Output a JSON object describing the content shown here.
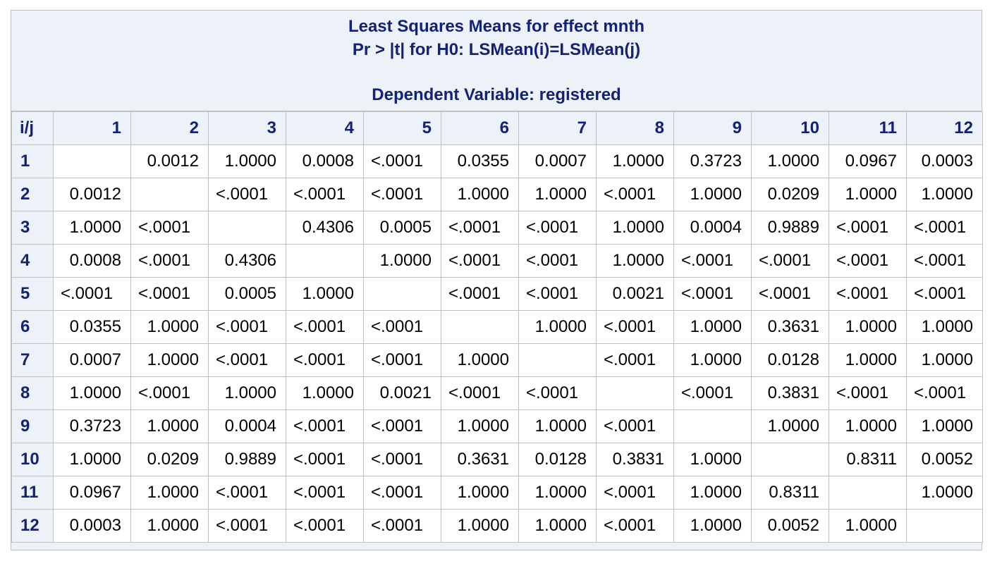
{
  "title": {
    "line1": "Least Squares Means for effect mnth",
    "line2": "Pr > |t| for H0: LSMean(i)=LSMean(j)",
    "line3": "Dependent Variable: registered"
  },
  "table": {
    "corner": "i/j",
    "columns": [
      "1",
      "2",
      "3",
      "4",
      "5",
      "6",
      "7",
      "8",
      "9",
      "10",
      "11",
      "12"
    ],
    "rows": [
      {
        "label": "1",
        "cells": [
          "",
          "0.0012",
          "1.0000",
          "0.0008",
          "<.0001",
          "0.0355",
          "0.0007",
          "1.0000",
          "0.3723",
          "1.0000",
          "0.0967",
          "0.0003"
        ]
      },
      {
        "label": "2",
        "cells": [
          "0.0012",
          "",
          "<.0001",
          "<.0001",
          "<.0001",
          "1.0000",
          "1.0000",
          "<.0001",
          "1.0000",
          "0.0209",
          "1.0000",
          "1.0000"
        ]
      },
      {
        "label": "3",
        "cells": [
          "1.0000",
          "<.0001",
          "",
          "0.4306",
          "0.0005",
          "<.0001",
          "<.0001",
          "1.0000",
          "0.0004",
          "0.9889",
          "<.0001",
          "<.0001"
        ]
      },
      {
        "label": "4",
        "cells": [
          "0.0008",
          "<.0001",
          "0.4306",
          "",
          "1.0000",
          "<.0001",
          "<.0001",
          "1.0000",
          "<.0001",
          "<.0001",
          "<.0001",
          "<.0001"
        ]
      },
      {
        "label": "5",
        "cells": [
          "<.0001",
          "<.0001",
          "0.0005",
          "1.0000",
          "",
          "<.0001",
          "<.0001",
          "0.0021",
          "<.0001",
          "<.0001",
          "<.0001",
          "<.0001"
        ]
      },
      {
        "label": "6",
        "cells": [
          "0.0355",
          "1.0000",
          "<.0001",
          "<.0001",
          "<.0001",
          "",
          "1.0000",
          "<.0001",
          "1.0000",
          "0.3631",
          "1.0000",
          "1.0000"
        ]
      },
      {
        "label": "7",
        "cells": [
          "0.0007",
          "1.0000",
          "<.0001",
          "<.0001",
          "<.0001",
          "1.0000",
          "",
          "<.0001",
          "1.0000",
          "0.0128",
          "1.0000",
          "1.0000"
        ]
      },
      {
        "label": "8",
        "cells": [
          "1.0000",
          "<.0001",
          "1.0000",
          "1.0000",
          "0.0021",
          "<.0001",
          "<.0001",
          "",
          "<.0001",
          "0.3831",
          "<.0001",
          "<.0001"
        ]
      },
      {
        "label": "9",
        "cells": [
          "0.3723",
          "1.0000",
          "0.0004",
          "<.0001",
          "<.0001",
          "1.0000",
          "1.0000",
          "<.0001",
          "",
          "1.0000",
          "1.0000",
          "1.0000"
        ]
      },
      {
        "label": "10",
        "cells": [
          "1.0000",
          "0.0209",
          "0.9889",
          "<.0001",
          "<.0001",
          "0.3631",
          "0.0128",
          "0.3831",
          "1.0000",
          "",
          "0.8311",
          "0.0052"
        ]
      },
      {
        "label": "11",
        "cells": [
          "0.0967",
          "1.0000",
          "<.0001",
          "<.0001",
          "<.0001",
          "1.0000",
          "1.0000",
          "<.0001",
          "1.0000",
          "0.8311",
          "",
          "1.0000"
        ]
      },
      {
        "label": "12",
        "cells": [
          "0.0003",
          "1.0000",
          "<.0001",
          "<.0001",
          "<.0001",
          "1.0000",
          "1.0000",
          "<.0001",
          "1.0000",
          "0.0052",
          "1.0000",
          ""
        ]
      }
    ]
  }
}
